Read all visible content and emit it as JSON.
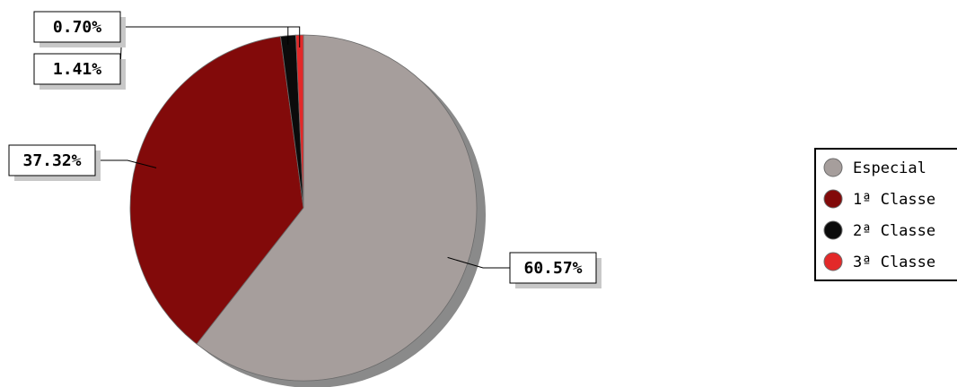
{
  "chart_data": {
    "type": "pie",
    "title": "",
    "categories": [
      "Especial",
      "1ª Classe",
      "2ª Classe",
      "3ª Classe"
    ],
    "values": [
      60.57,
      37.32,
      1.41,
      0.7
    ],
    "labels": [
      "60.57%",
      "37.32%",
      "1.41%",
      "0.70%"
    ],
    "colors": [
      "#a69e9c",
      "#820a0a",
      "#0b0b0b",
      "#e32929"
    ],
    "legend_position": "right",
    "shadow": true
  }
}
